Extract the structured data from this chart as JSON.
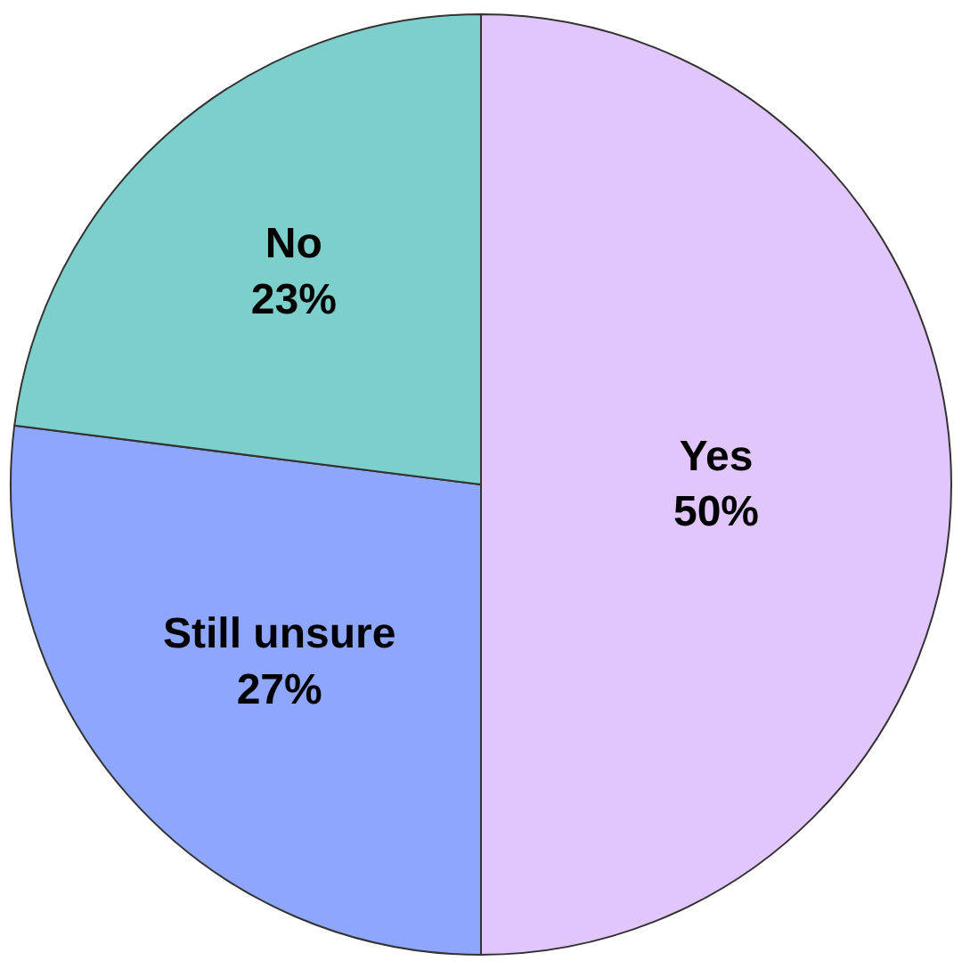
{
  "chart_data": {
    "type": "pie",
    "categories": [
      "Yes",
      "Still unsure",
      "No"
    ],
    "values": [
      50,
      27,
      23
    ],
    "colors": [
      "#e0c6fb",
      "#8ea7fd",
      "#7ccfcb"
    ],
    "value_labels": [
      "50%",
      "27%",
      "23%"
    ],
    "legend": false
  }
}
